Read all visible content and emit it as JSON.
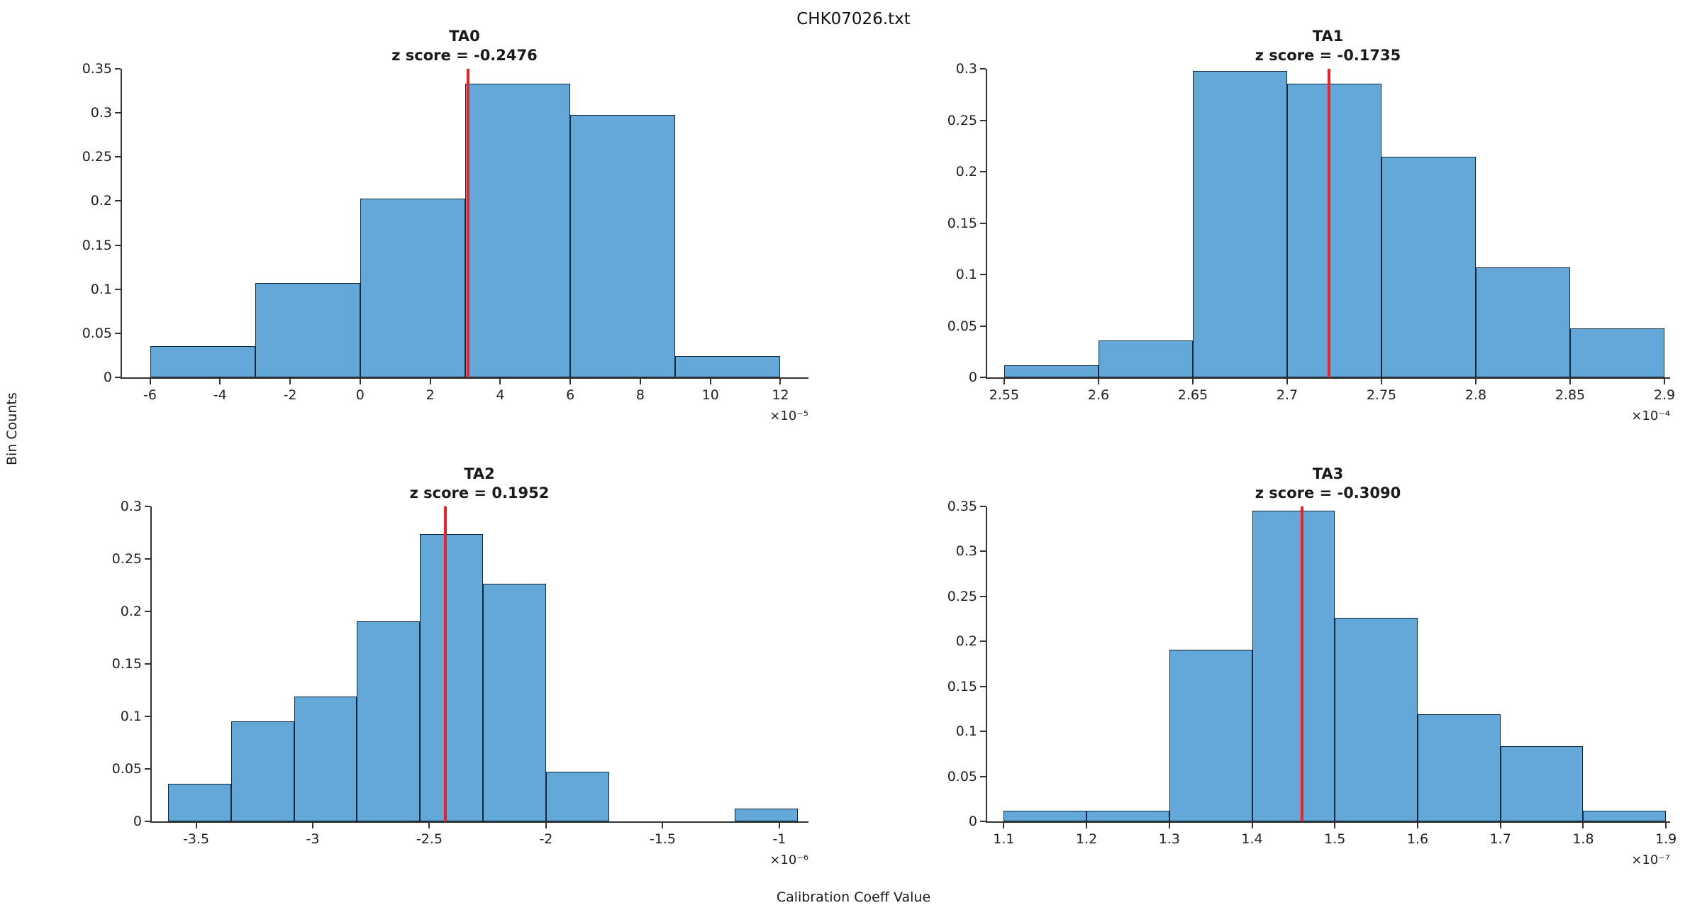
{
  "figure": {
    "title": "CHK07026.txt",
    "xlabel": "Calibration Coeff Value",
    "ylabel": "Bin Counts",
    "colors": {
      "bar_fill": "#63a8d8",
      "bar_edge": "#10283e",
      "z_line": "#ec2227",
      "axis": "#333333"
    }
  },
  "chart_data": [
    {
      "type": "bar",
      "name": "TA0",
      "title": "TA0",
      "subtitle": "z score = -0.2476",
      "z_score": -0.2476,
      "z_line_x": 3.09,
      "bin_edges": [
        -6,
        -3,
        0,
        3,
        6,
        9,
        12
      ],
      "values": [
        0.0357,
        0.1071,
        0.2024,
        0.3333,
        0.2976,
        0.0238
      ],
      "xlim": [
        -6.8,
        12.8
      ],
      "ylim": [
        0,
        0.35
      ],
      "xticks": [
        -6,
        -4,
        -2,
        0,
        2,
        4,
        6,
        8,
        10,
        12
      ],
      "xtick_labels": [
        "-6",
        "-4",
        "-2",
        "0",
        "2",
        "4",
        "6",
        "8",
        "10",
        "12"
      ],
      "yticks": [
        0,
        0.05,
        0.1,
        0.15,
        0.2,
        0.25,
        0.3,
        0.35
      ],
      "ytick_labels": [
        "0",
        "0.05",
        "0.1",
        "0.15",
        "0.2",
        "0.25",
        "0.3",
        "0.35"
      ],
      "x_offset_label": "×10⁻⁵",
      "ylabel_shared": "Bin Counts",
      "xlabel_shared": "Calibration Coeff Value"
    },
    {
      "type": "bar",
      "name": "TA1",
      "title": "TA1",
      "subtitle": "z score = -0.1735",
      "z_score": -0.1735,
      "z_line_x": 2.722,
      "bin_edges": [
        2.55,
        2.6,
        2.65,
        2.7,
        2.75,
        2.8,
        2.85,
        2.9
      ],
      "values": [
        0.0119,
        0.0357,
        0.2976,
        0.2857,
        0.2143,
        0.1071,
        0.0476
      ],
      "xlim": [
        2.541,
        2.903
      ],
      "ylim": [
        0,
        0.3
      ],
      "xticks": [
        2.55,
        2.6,
        2.65,
        2.7,
        2.75,
        2.8,
        2.85,
        2.9
      ],
      "xtick_labels": [
        "2.55",
        "2.6",
        "2.65",
        "2.7",
        "2.75",
        "2.8",
        "2.85",
        "2.9"
      ],
      "yticks": [
        0,
        0.05,
        0.1,
        0.15,
        0.2,
        0.25,
        0.3
      ],
      "ytick_labels": [
        "0",
        "0.05",
        "0.1",
        "0.15",
        "0.2",
        "0.25",
        "0.3"
      ],
      "x_offset_label": "×10⁻⁴",
      "ylabel_shared": "Bin Counts",
      "xlabel_shared": "Calibration Coeff Value"
    },
    {
      "type": "bar",
      "name": "TA2",
      "title": "TA2",
      "subtitle": "z score = 0.1952",
      "z_score": 0.1952,
      "z_line_x": -2.43,
      "bin_edges": [
        -3.62,
        -3.35,
        -3.08,
        -2.81,
        -2.54,
        -2.27,
        -2.0,
        -1.73,
        -1.46,
        -1.19,
        -0.92
      ],
      "values": [
        0.0357,
        0.0952,
        0.119,
        0.1905,
        0.2738,
        0.2262,
        0.0476,
        0,
        0,
        0.0119
      ],
      "xlim": [
        -3.69,
        -0.875
      ],
      "ylim": [
        0,
        0.3
      ],
      "xticks": [
        -3.5,
        -3,
        -2.5,
        -2,
        -1.5,
        -1
      ],
      "xtick_labels": [
        "-3.5",
        "-3",
        "-2.5",
        "-2",
        "-1.5",
        "-1"
      ],
      "yticks": [
        0,
        0.05,
        0.1,
        0.15,
        0.2,
        0.25,
        0.3
      ],
      "ytick_labels": [
        "0",
        "0.05",
        "0.1",
        "0.15",
        "0.2",
        "0.25",
        "0.3"
      ],
      "x_offset_label": "×10⁻⁶",
      "ylabel_shared": "Bin Counts",
      "xlabel_shared": "Calibration Coeff Value"
    },
    {
      "type": "bar",
      "name": "TA3",
      "title": "TA3",
      "subtitle": "z score = -0.3090",
      "z_score": -0.309,
      "z_line_x": 1.4606,
      "bin_edges": [
        1.1,
        1.2,
        1.3,
        1.4,
        1.5,
        1.6,
        1.7,
        1.8,
        1.9
      ],
      "values": [
        0.0119,
        0.0119,
        0.1905,
        0.3452,
        0.2262,
        0.119,
        0.0833,
        0.0119
      ],
      "xlim": [
        1.08,
        1.905
      ],
      "ylim": [
        0,
        0.35
      ],
      "xticks": [
        1.1,
        1.2,
        1.3,
        1.4,
        1.5,
        1.6,
        1.7,
        1.8,
        1.9
      ],
      "xtick_labels": [
        "1.1",
        "1.2",
        "1.3",
        "1.4",
        "1.5",
        "1.6",
        "1.7",
        "1.8",
        "1.9"
      ],
      "yticks": [
        0,
        0.05,
        0.1,
        0.15,
        0.2,
        0.25,
        0.3,
        0.35
      ],
      "ytick_labels": [
        "0",
        "0.05",
        "0.1",
        "0.15",
        "0.2",
        "0.25",
        "0.3",
        "0.35"
      ],
      "x_offset_label": "×10⁻⁷",
      "ylabel_shared": "Bin Counts",
      "xlabel_shared": "Calibration Coeff Value"
    }
  ]
}
